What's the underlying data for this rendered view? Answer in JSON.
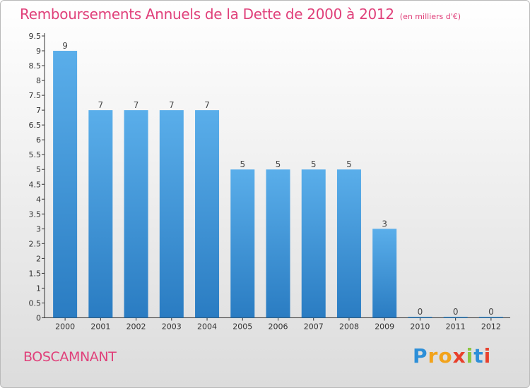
{
  "chart_data": {
    "type": "bar",
    "title": "Remboursements Annuels de la Dette de 2000 à 2012",
    "unit_label": "(en milliers d'€)",
    "categories": [
      "2000",
      "2001",
      "2002",
      "2003",
      "2004",
      "2005",
      "2006",
      "2007",
      "2008",
      "2009",
      "2010",
      "2011",
      "2012"
    ],
    "values": [
      9,
      7,
      7,
      7,
      7,
      5,
      5,
      5,
      5,
      3,
      0,
      0,
      0
    ],
    "data_labels": [
      "9",
      "7",
      "7",
      "7",
      "7",
      "5",
      "5",
      "5",
      "5",
      "3",
      "0",
      "0",
      "0"
    ],
    "y_ticks": [
      "0",
      "0.5",
      "1",
      "1.5",
      "2",
      "2.5",
      "3",
      "3.5",
      "4",
      "4.5",
      "5",
      "5.5",
      "6",
      "6.5",
      "7",
      "7.5",
      "8",
      "8.5",
      "9",
      "9.5"
    ],
    "ylim": [
      0,
      9.5
    ],
    "grid": false,
    "bar_color": "#4f9fde"
  },
  "commune": "BOSCAMNANT",
  "logo": {
    "letters": [
      "P",
      "r",
      "o",
      "x",
      "i",
      "t",
      "i"
    ],
    "colors": [
      "#2d8fd8",
      "#f2a31b",
      "#f2a31b",
      "#e8402c",
      "#8cc63f",
      "#2d8fd8",
      "#e8402c"
    ]
  }
}
